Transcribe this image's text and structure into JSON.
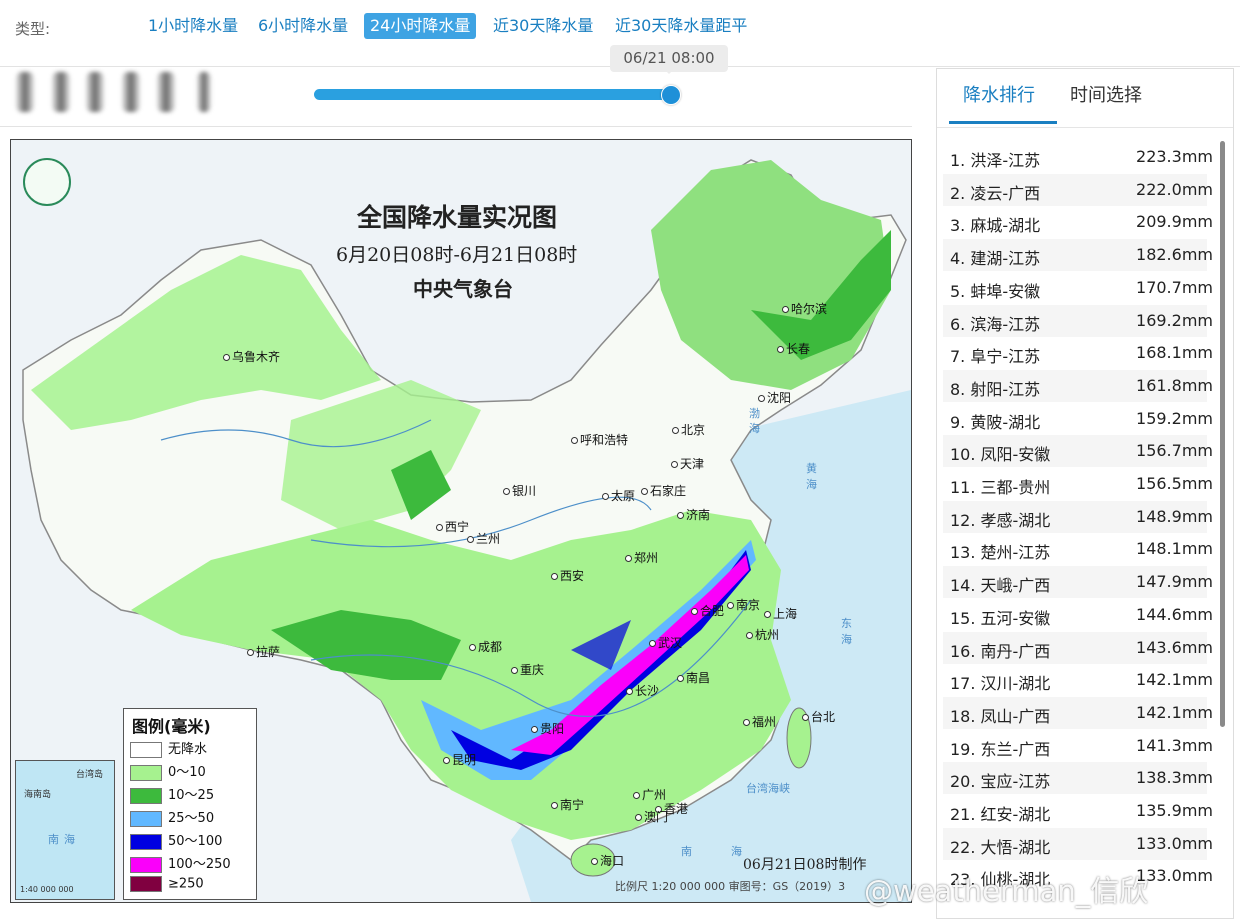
{
  "type_bar": {
    "label": "类型:",
    "tabs": [
      "1小时降水量",
      "6小时降水量",
      "24小时降水量",
      "近30天降水量",
      "近30天降水量距平"
    ],
    "active_index": 2
  },
  "timeline": {
    "current_time": "06/21 08:00"
  },
  "map": {
    "title": "全国降水量实况图",
    "subtitle": "6月20日08时-6月21日08时",
    "org": "中央气象台",
    "made": "06月21日08时制作",
    "scale": "比例尺 1:20 000 000    审图号：GS（2019）3",
    "cities": [
      "乌鲁木齐",
      "哈尔滨",
      "长春",
      "沈阳",
      "北京",
      "天津",
      "呼和浩特",
      "石家庄",
      "太原",
      "银川",
      "济南",
      "西宁",
      "兰州",
      "郑州",
      "西安",
      "合肥",
      "南京",
      "上海",
      "武汉",
      "杭州",
      "成都",
      "重庆",
      "拉萨",
      "南昌",
      "长沙",
      "贵阳",
      "福州",
      "台北",
      "昆明",
      "广州",
      "香港",
      "澳门",
      "南宁",
      "海口"
    ],
    "sea_labels": [
      "渤",
      "海",
      "黄",
      "海",
      "东",
      "海",
      "南",
      "海",
      "台湾海峡"
    ],
    "legend": {
      "title": "图例(毫米)",
      "items": [
        {
          "label": "无降水",
          "color": "#ffffff"
        },
        {
          "label": "0～10",
          "color": "#a6f28f"
        },
        {
          "label": "10～25",
          "color": "#3dba3d"
        },
        {
          "label": "25～50",
          "color": "#61b8ff"
        },
        {
          "label": "50～100",
          "color": "#0000e1"
        },
        {
          "label": "100～250",
          "color": "#fa00fa"
        },
        {
          "label": "≥250",
          "color": "#800040"
        }
      ]
    },
    "inset_labels": [
      "台湾岛",
      "海南岛",
      "南",
      "海",
      "1:40 000 000"
    ]
  },
  "right_panel": {
    "tabs": [
      "降水排行",
      "时间选择"
    ],
    "active_index": 0,
    "ranking": [
      {
        "name": "1. 洪泽-江苏",
        "value": "223.3mm"
      },
      {
        "name": "2. 凌云-广西",
        "value": "222.0mm"
      },
      {
        "name": "3. 麻城-湖北",
        "value": "209.9mm"
      },
      {
        "name": "4. 建湖-江苏",
        "value": "182.6mm"
      },
      {
        "name": "5. 蚌埠-安徽",
        "value": "170.7mm"
      },
      {
        "name": "6. 滨海-江苏",
        "value": "169.2mm"
      },
      {
        "name": "7. 阜宁-江苏",
        "value": "168.1mm"
      },
      {
        "name": "8. 射阳-江苏",
        "value": "161.8mm"
      },
      {
        "name": "9. 黄陂-湖北",
        "value": "159.2mm"
      },
      {
        "name": "10. 凤阳-安徽",
        "value": "156.7mm"
      },
      {
        "name": "11. 三都-贵州",
        "value": "156.5mm"
      },
      {
        "name": "12. 孝感-湖北",
        "value": "148.9mm"
      },
      {
        "name": "13. 楚州-江苏",
        "value": "148.1mm"
      },
      {
        "name": "14. 天峨-广西",
        "value": "147.9mm"
      },
      {
        "name": "15. 五河-安徽",
        "value": "144.6mm"
      },
      {
        "name": "16. 南丹-广西",
        "value": "143.6mm"
      },
      {
        "name": "17. 汉川-湖北",
        "value": "142.1mm"
      },
      {
        "name": "18. 凤山-广西",
        "value": "142.1mm"
      },
      {
        "name": "19. 东兰-广西",
        "value": "141.3mm"
      },
      {
        "name": "20. 宝应-江苏",
        "value": "138.3mm"
      },
      {
        "name": "21. 红安-湖北",
        "value": "135.9mm"
      },
      {
        "name": "22. 大悟-湖北",
        "value": "133.0mm"
      },
      {
        "name": "23. 仙桃-湖北",
        "value": "133.0mm"
      }
    ]
  },
  "watermark": "@weatherman_信欣"
}
